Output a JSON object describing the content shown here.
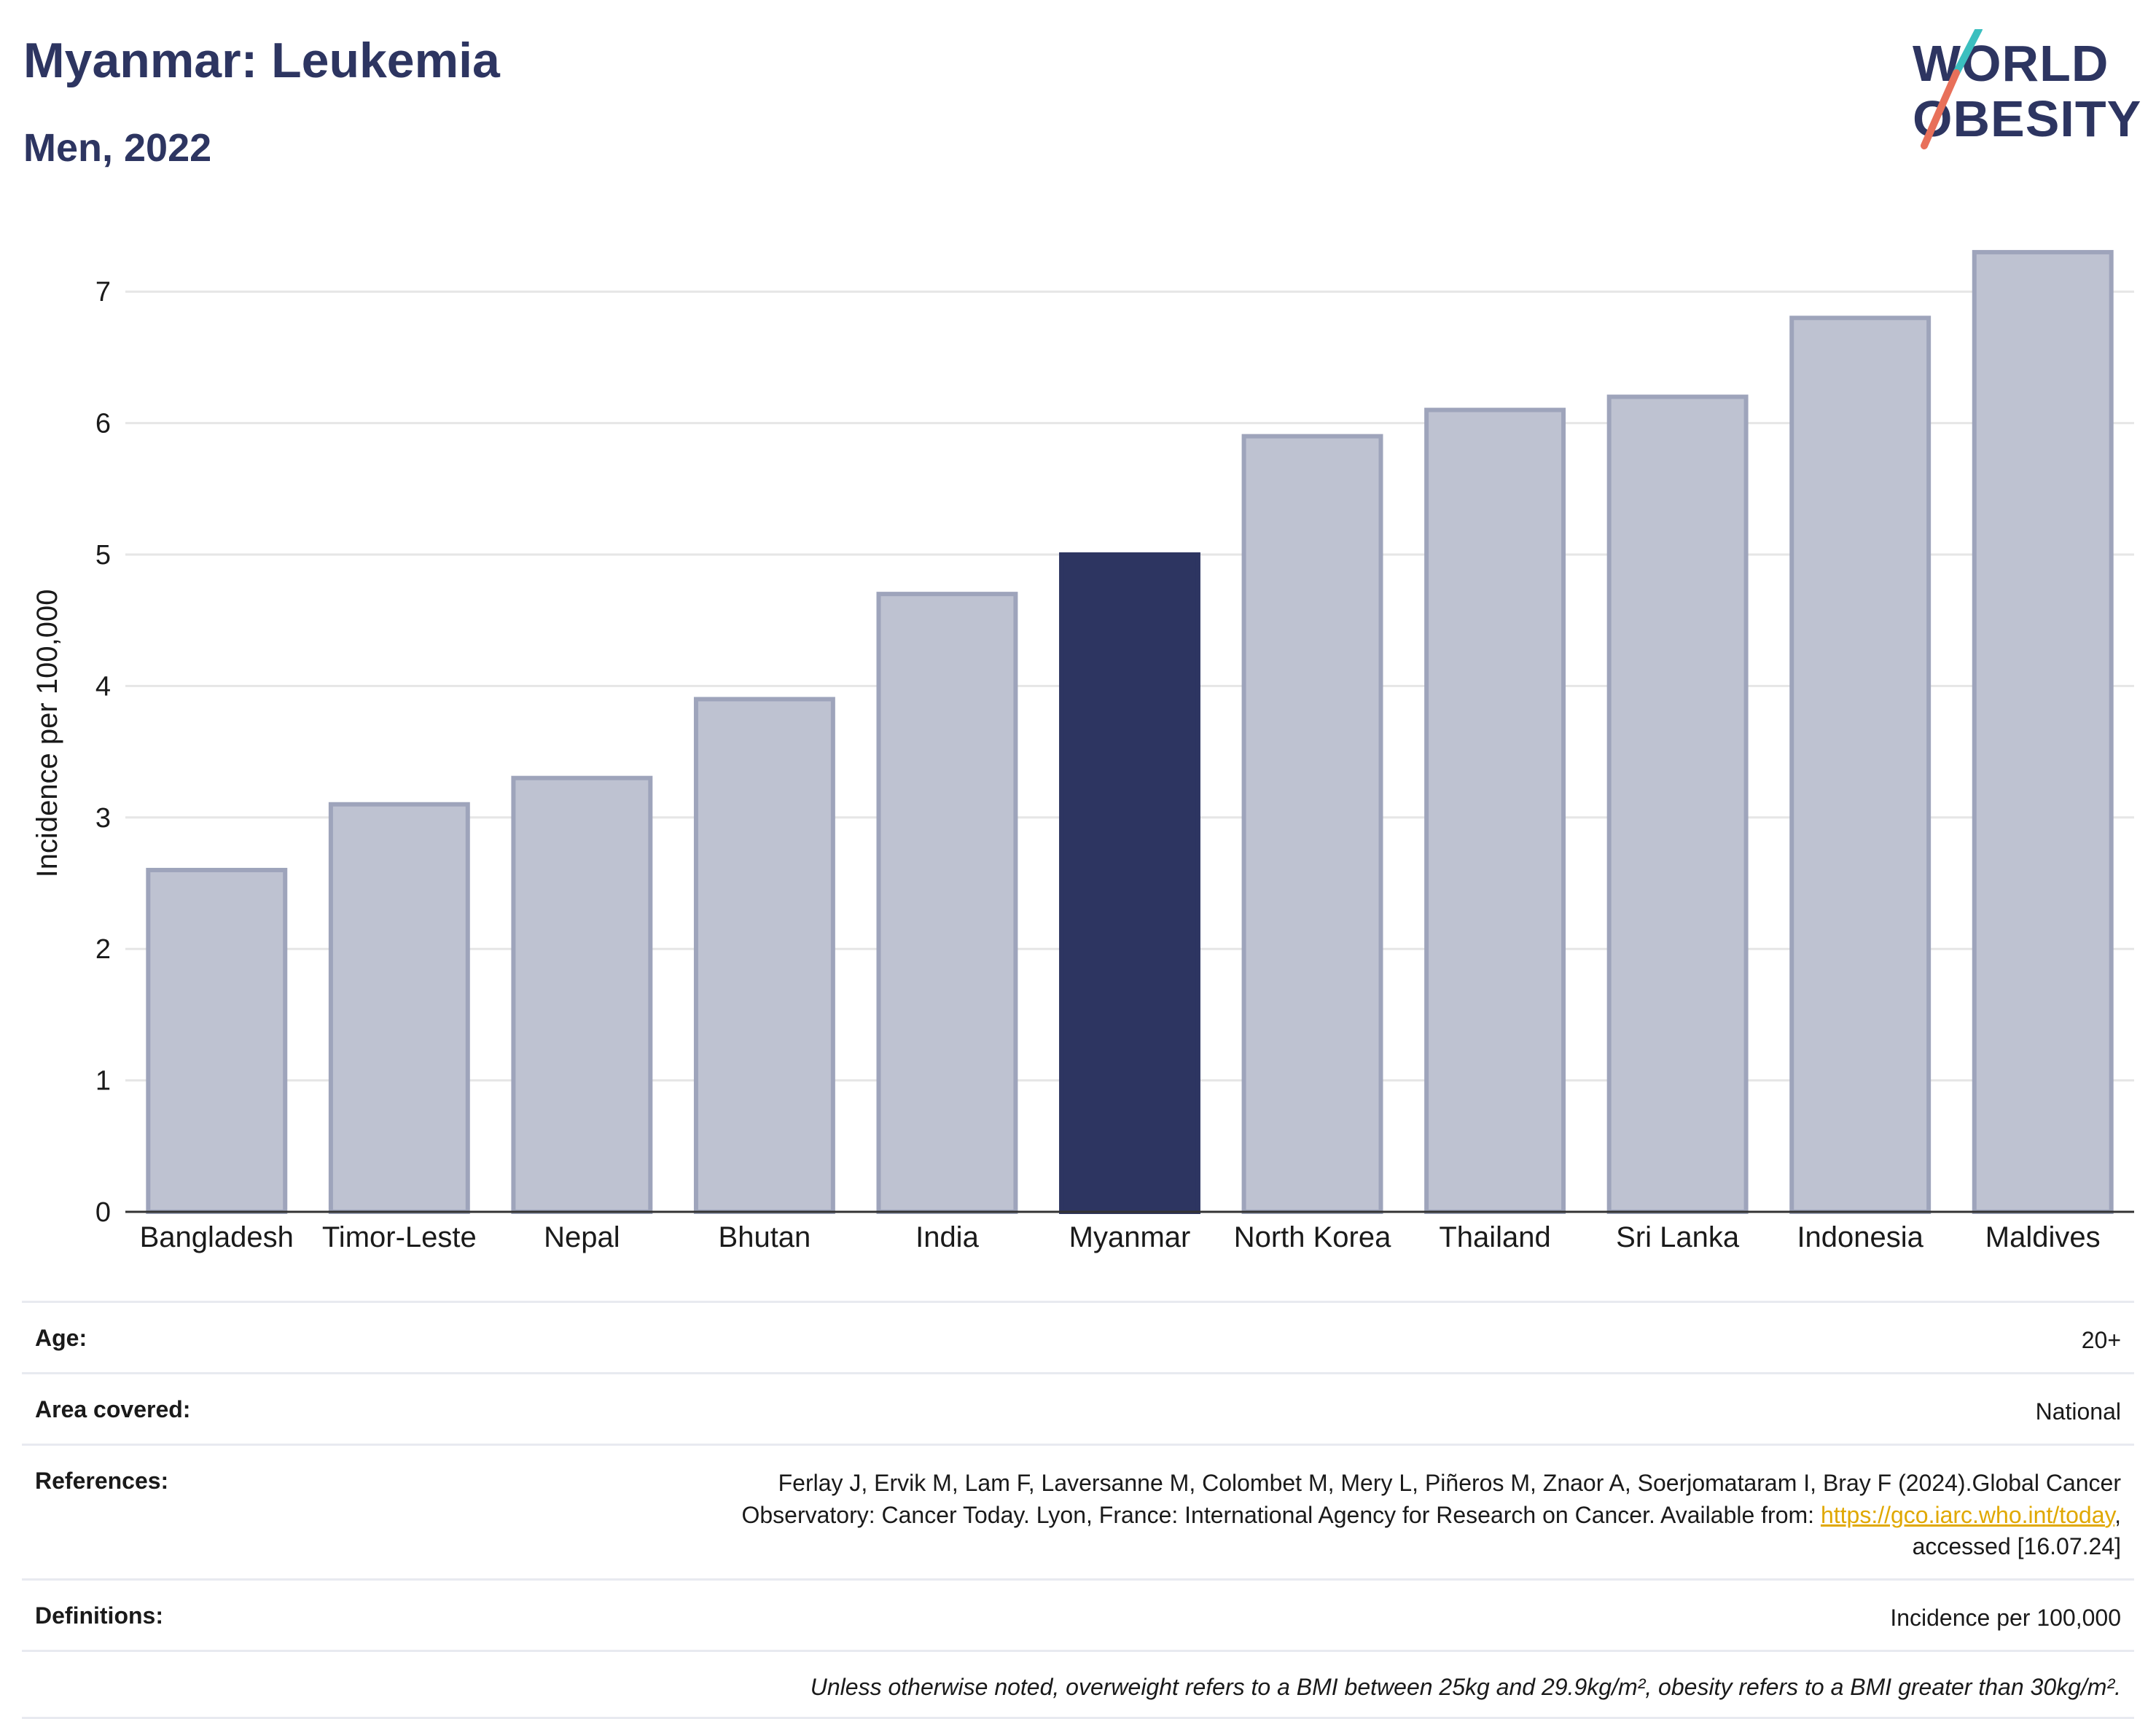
{
  "header": {
    "title": "Myanmar: Leukemia",
    "subtitle": "Men, 2022",
    "logo_top": "WORLD",
    "logo_bottom": "OBESITY"
  },
  "colors": {
    "highlight": "#2d3561",
    "bar_fill": "#bec2d1",
    "bar_stroke": "#9ea4bb",
    "grid": "#e6e6e6",
    "logo_teal": "#3bbfbf",
    "logo_coral": "#e8705a"
  },
  "chart_data": {
    "type": "bar",
    "categories": [
      "Bangladesh",
      "Timor-Leste",
      "Nepal",
      "Bhutan",
      "India",
      "Myanmar",
      "North Korea",
      "Thailand",
      "Sri Lanka",
      "Indonesia",
      "Maldives"
    ],
    "values": [
      2.6,
      3.1,
      3.3,
      3.9,
      4.7,
      5.0,
      5.9,
      6.1,
      6.2,
      6.8,
      7.3
    ],
    "highlight": "Myanmar",
    "title": "Myanmar: Leukemia",
    "subtitle": "Men, 2022",
    "xlabel": "",
    "ylabel": "Incidence per 100,000",
    "ylim": [
      0,
      7.5
    ],
    "yticks": [
      0,
      1,
      2,
      3,
      4,
      5,
      6,
      7
    ],
    "grid": true
  },
  "meta": {
    "age_label": "Age:",
    "age_value": "20+",
    "area_label": "Area covered:",
    "area_value": "National",
    "references_label": "References:",
    "references_line1": "Ferlay J, Ervik M, Lam F, Laversanne M, Colombet M, Mery L, Piñeros M, Znaor A, Soerjomataram I, Bray F (2024).Global Cancer",
    "references_line2": "Observatory: Cancer Today. Lyon, France: International Agency for Research on Cancer. Available from: ",
    "references_link": "https://gco.iarc.who.int/today",
    "references_line3": "accessed [16.07.24]",
    "definitions_label": "Definitions:",
    "definitions_value": "Incidence per 100,000",
    "note": "Unless otherwise noted, overweight refers to a BMI between 25kg and 29.9kg/m², obesity refers to a BMI greater than 30kg/m²."
  }
}
